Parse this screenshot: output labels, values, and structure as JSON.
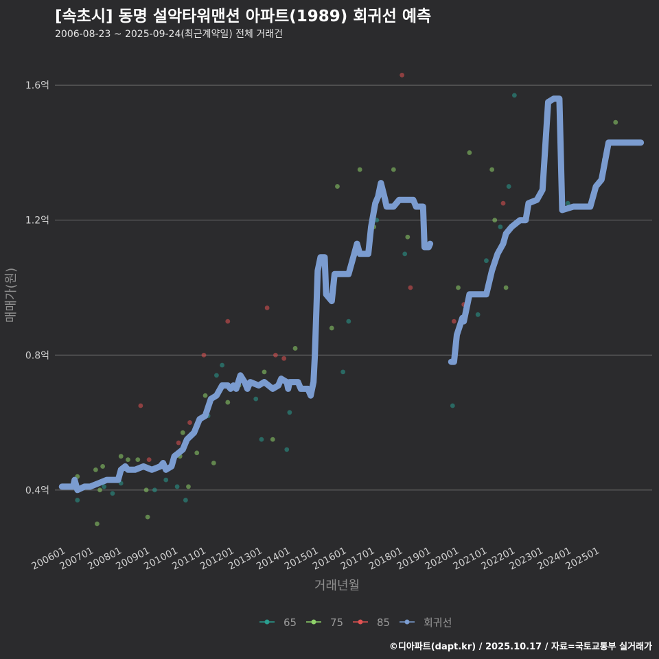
{
  "title": "[속초시] 동명 설악타워맨션 아파트(1989) 회귀선 예측",
  "subtitle": "2006-08-23 ~ 2025-09-24(최근계약일) 전체 거래건",
  "credit": "©디아파트(dapt.kr) / 2025.10.17 / 자료=국토교통부 실거래가",
  "chart_data": {
    "type": "scatter",
    "xlabel": "거래년월",
    "ylabel": "매매가(원)",
    "xlim": [
      2005.75,
      2027.0
    ],
    "ylim": [
      0.245,
      1.7
    ],
    "x_ticks": [
      {
        "label": "200601",
        "value": 2006.0
      },
      {
        "label": "200701",
        "value": 2007.0
      },
      {
        "label": "200801",
        "value": 2008.0
      },
      {
        "label": "200901",
        "value": 2009.0
      },
      {
        "label": "201001",
        "value": 2010.0
      },
      {
        "label": "201101",
        "value": 2011.0
      },
      {
        "label": "201201",
        "value": 2012.0
      },
      {
        "label": "201301",
        "value": 2013.0
      },
      {
        "label": "201401",
        "value": 2014.0
      },
      {
        "label": "201501",
        "value": 2015.0
      },
      {
        "label": "201601",
        "value": 2016.0
      },
      {
        "label": "201701",
        "value": 2017.0
      },
      {
        "label": "201801",
        "value": 2018.0
      },
      {
        "label": "201901",
        "value": 2019.0
      },
      {
        "label": "202001",
        "value": 2020.0
      },
      {
        "label": "202101",
        "value": 2021.0
      },
      {
        "label": "202201",
        "value": 2022.0
      },
      {
        "label": "202301",
        "value": 2023.0
      },
      {
        "label": "202401",
        "value": 2024.0
      },
      {
        "label": "202501",
        "value": 2025.0
      }
    ],
    "y_ticks": [
      {
        "label": "0.4억",
        "value": 0.4
      },
      {
        "label": "0.8억",
        "value": 0.8
      },
      {
        "label": "1.2억",
        "value": 1.2
      },
      {
        "label": "1.6억",
        "value": 1.6
      }
    ],
    "legend": [
      {
        "name": "65",
        "color": "#2a9d8f"
      },
      {
        "name": "75",
        "color": "#8fd16a"
      },
      {
        "name": "85",
        "color": "#e05252"
      },
      {
        "name": "회귀선",
        "color": "#7b9cd0"
      }
    ],
    "series": [
      {
        "name": "65",
        "color": "#2a9d8f",
        "points": [
          [
            2006.55,
            0.37
          ],
          [
            2007.5,
            0.41
          ],
          [
            2007.8,
            0.39
          ],
          [
            2008.1,
            0.42
          ],
          [
            2009.3,
            0.4
          ],
          [
            2009.7,
            0.43
          ],
          [
            2010.1,
            0.41
          ],
          [
            2010.4,
            0.37
          ],
          [
            2011.2,
            0.62
          ],
          [
            2011.5,
            0.74
          ],
          [
            2011.7,
            0.77
          ],
          [
            2012.9,
            0.67
          ],
          [
            2013.1,
            0.55
          ],
          [
            2014.0,
            0.52
          ],
          [
            2014.1,
            0.63
          ],
          [
            2016.0,
            0.75
          ],
          [
            2016.2,
            0.9
          ],
          [
            2017.2,
            1.2
          ],
          [
            2018.2,
            1.1
          ],
          [
            2019.9,
            0.65
          ],
          [
            2020.8,
            0.92
          ],
          [
            2021.1,
            1.08
          ],
          [
            2021.6,
            1.18
          ],
          [
            2021.9,
            1.3
          ],
          [
            2022.1,
            1.57
          ],
          [
            2023.8,
            1.23
          ],
          [
            2024.0,
            1.25
          ]
        ]
      },
      {
        "name": "75",
        "color": "#8fd16a",
        "points": [
          [
            2006.55,
            0.44
          ],
          [
            2007.0,
            0.41
          ],
          [
            2007.2,
            0.46
          ],
          [
            2007.35,
            0.4
          ],
          [
            2007.45,
            0.47
          ],
          [
            2007.25,
            0.3
          ],
          [
            2007.9,
            0.43
          ],
          [
            2008.1,
            0.5
          ],
          [
            2008.35,
            0.49
          ],
          [
            2008.7,
            0.49
          ],
          [
            2009.0,
            0.4
          ],
          [
            2009.05,
            0.32
          ],
          [
            2010.2,
            0.5
          ],
          [
            2010.3,
            0.57
          ],
          [
            2010.5,
            0.41
          ],
          [
            2010.8,
            0.51
          ],
          [
            2011.1,
            0.68
          ],
          [
            2011.4,
            0.48
          ],
          [
            2011.9,
            0.66
          ],
          [
            2012.3,
            0.71
          ],
          [
            2013.2,
            0.75
          ],
          [
            2013.5,
            0.55
          ],
          [
            2014.3,
            0.82
          ],
          [
            2015.6,
            0.88
          ],
          [
            2015.8,
            1.3
          ],
          [
            2016.6,
            1.35
          ],
          [
            2017.1,
            1.18
          ],
          [
            2017.8,
            1.35
          ],
          [
            2018.3,
            1.15
          ],
          [
            2020.1,
            1.0
          ],
          [
            2020.5,
            1.4
          ],
          [
            2021.3,
            1.35
          ],
          [
            2021.4,
            1.2
          ],
          [
            2021.8,
            1.0
          ],
          [
            2025.3,
            1.38
          ],
          [
            2025.7,
            1.49
          ]
        ]
      },
      {
        "name": "85",
        "color": "#e05252",
        "points": [
          [
            2008.8,
            0.65
          ],
          [
            2009.1,
            0.49
          ],
          [
            2010.15,
            0.54
          ],
          [
            2010.55,
            0.6
          ],
          [
            2011.05,
            0.8
          ],
          [
            2011.9,
            0.9
          ],
          [
            2013.3,
            0.94
          ],
          [
            2013.6,
            0.8
          ],
          [
            2013.9,
            0.79
          ],
          [
            2018.1,
            1.63
          ],
          [
            2018.4,
            1.0
          ],
          [
            2019.95,
            0.9
          ],
          [
            2020.3,
            0.95
          ],
          [
            2021.7,
            1.25
          ]
        ]
      }
    ],
    "regression_segments": [
      [
        [
          2006.0,
          0.41
        ],
        [
          2006.4,
          0.41
        ],
        [
          2006.45,
          0.43
        ],
        [
          2006.55,
          0.4
        ],
        [
          2006.8,
          0.41
        ],
        [
          2007.0,
          0.41
        ],
        [
          2007.3,
          0.42
        ],
        [
          2007.6,
          0.43
        ],
        [
          2008.0,
          0.43
        ],
        [
          2008.1,
          0.46
        ],
        [
          2008.25,
          0.47
        ],
        [
          2008.35,
          0.46
        ],
        [
          2008.6,
          0.46
        ],
        [
          2008.9,
          0.47
        ],
        [
          2009.2,
          0.46
        ],
        [
          2009.5,
          0.47
        ],
        [
          2009.6,
          0.48
        ],
        [
          2009.7,
          0.46
        ],
        [
          2009.9,
          0.47
        ],
        [
          2010.0,
          0.5
        ],
        [
          2010.3,
          0.52
        ],
        [
          2010.45,
          0.55
        ],
        [
          2010.7,
          0.57
        ],
        [
          2010.9,
          0.61
        ],
        [
          2011.1,
          0.62
        ],
        [
          2011.3,
          0.67
        ],
        [
          2011.5,
          0.68
        ],
        [
          2011.7,
          0.71
        ],
        [
          2011.9,
          0.71
        ],
        [
          2012.0,
          0.7
        ],
        [
          2012.1,
          0.71
        ],
        [
          2012.2,
          0.7
        ],
        [
          2012.35,
          0.74
        ],
        [
          2012.5,
          0.72
        ],
        [
          2012.6,
          0.7
        ],
        [
          2012.7,
          0.72
        ],
        [
          2013.0,
          0.71
        ],
        [
          2013.2,
          0.72
        ],
        [
          2013.35,
          0.71
        ],
        [
          2013.5,
          0.7
        ],
        [
          2013.7,
          0.71
        ],
        [
          2013.8,
          0.73
        ],
        [
          2014.0,
          0.72
        ],
        [
          2014.05,
          0.7
        ],
        [
          2014.1,
          0.72
        ],
        [
          2014.4,
          0.72
        ],
        [
          2014.5,
          0.7
        ],
        [
          2014.75,
          0.7
        ],
        [
          2014.85,
          0.68
        ],
        [
          2014.95,
          0.72
        ],
        [
          2015.0,
          0.8
        ],
        [
          2015.1,
          1.05
        ],
        [
          2015.2,
          1.09
        ],
        [
          2015.35,
          1.09
        ],
        [
          2015.4,
          0.98
        ],
        [
          2015.5,
          0.97
        ],
        [
          2015.6,
          0.96
        ],
        [
          2015.7,
          1.04
        ],
        [
          2016.2,
          1.04
        ],
        [
          2016.3,
          1.07
        ],
        [
          2016.5,
          1.13
        ],
        [
          2016.6,
          1.1
        ],
        [
          2016.9,
          1.1
        ],
        [
          2017.0,
          1.18
        ],
        [
          2017.15,
          1.25
        ],
        [
          2017.25,
          1.27
        ],
        [
          2017.35,
          1.31
        ],
        [
          2017.5,
          1.26
        ],
        [
          2017.55,
          1.24
        ],
        [
          2017.8,
          1.24
        ],
        [
          2018.0,
          1.26
        ],
        [
          2018.5,
          1.26
        ],
        [
          2018.6,
          1.24
        ],
        [
          2018.85,
          1.24
        ],
        [
          2018.9,
          1.12
        ],
        [
          2019.05,
          1.12
        ],
        [
          2019.1,
          1.13
        ]
      ],
      [
        [
          2019.85,
          0.78
        ],
        [
          2019.95,
          0.78
        ],
        [
          2020.05,
          0.86
        ],
        [
          2020.25,
          0.91
        ],
        [
          2020.3,
          0.9
        ],
        [
          2020.5,
          0.98
        ],
        [
          2020.7,
          0.98
        ],
        [
          2021.1,
          0.98
        ],
        [
          2021.3,
          1.05
        ],
        [
          2021.5,
          1.1
        ],
        [
          2021.7,
          1.13
        ],
        [
          2021.8,
          1.16
        ],
        [
          2022.0,
          1.18
        ],
        [
          2022.3,
          1.2
        ],
        [
          2022.5,
          1.2
        ],
        [
          2022.6,
          1.25
        ],
        [
          2022.9,
          1.26
        ],
        [
          2023.1,
          1.29
        ],
        [
          2023.3,
          1.55
        ],
        [
          2023.5,
          1.56
        ],
        [
          2023.7,
          1.56
        ],
        [
          2023.8,
          1.23
        ],
        [
          2024.2,
          1.24
        ],
        [
          2024.8,
          1.24
        ],
        [
          2025.0,
          1.3
        ],
        [
          2025.2,
          1.32
        ],
        [
          2025.45,
          1.43
        ],
        [
          2026.0,
          1.43
        ],
        [
          2026.6,
          1.43
        ]
      ]
    ]
  }
}
